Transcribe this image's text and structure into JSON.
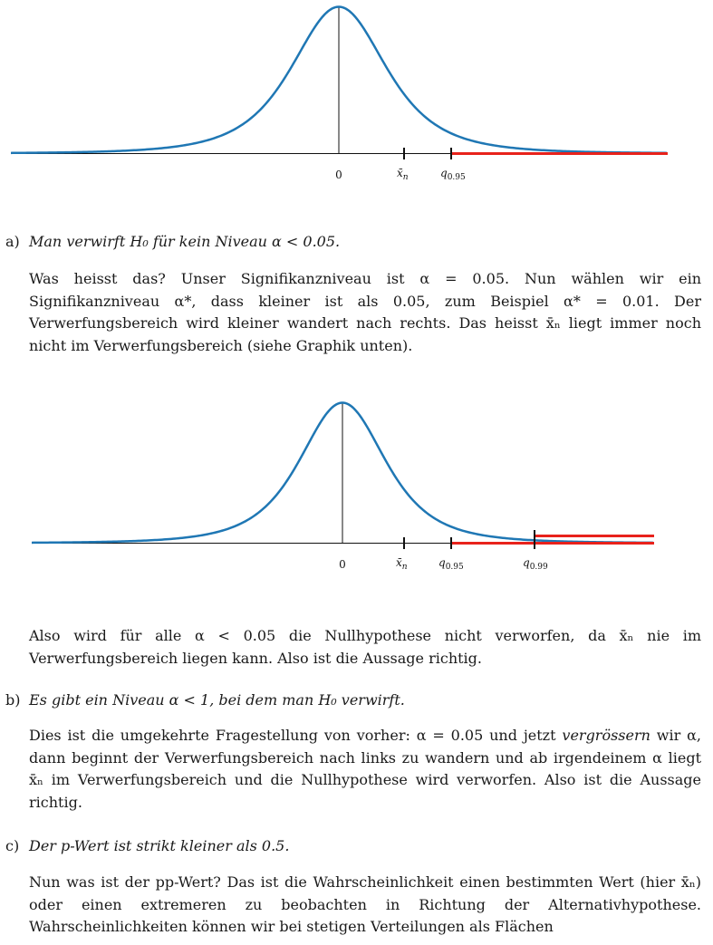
{
  "figures": [
    {
      "labels": {
        "zero": "0",
        "xbar": "x̄",
        "xbar_sub": "n",
        "q95": "q",
        "q95_sub": "0.95"
      }
    },
    {
      "labels": {
        "zero": "0",
        "xbar": "x̄",
        "xbar_sub": "n",
        "q95": "q",
        "q95_sub": "0.95",
        "q99": "q",
        "q99_sub": "0.99"
      }
    }
  ],
  "items": [
    {
      "label": "a)",
      "statement": "Man verwirft H₀ für kein Niveau α < 0.05.",
      "paragraph1": "Was heisst das? Unser Signifikanzniveau ist α = 0.05. Nun wählen wir ein Signifikanzniveau α*, dass kleiner ist als 0.05, zum Beispiel α* = 0.01. Der Verwerfungsbereich wird kleiner wandert nach rechts. Das heisst x̄ₙ liegt immer noch nicht im Verwerfungsbereich (siehe Graphik unten).",
      "paragraph2": "Also wird für alle α < 0.05 die Nullhypothese nicht verworfen, da x̄ₙ nie im Verwerfungsbereich liegen kann. Also ist die Aussage richtig."
    },
    {
      "label": "b)",
      "statement": "Es gibt ein Niveau α < 1, bei dem man H₀ verwirft.",
      "para_part1": "Dies ist die umgekehrte Fragestellung von vorher: α = 0.05 und jetzt ",
      "para_italic": "vergrössern",
      "para_part2": " wir α, dann beginnt der Verwerfungsbereich nach links zu wandern und ab irgendeinem α liegt x̄ₙ im Verwerfungsbereich und die Nullhypothese wird verworfen. Also ist die Aussage richtig."
    },
    {
      "label": "c)",
      "statement": "Der p-Wert ist strikt kleiner als 0.5.",
      "paragraph": "Nun was ist der pp-Wert? Das ist die Wahrscheinlichkeit einen bestimmten Wert (hier x̄ₙ) oder einen extremeren zu beobachten in Richtung der Alternativhypothese. Wahrscheinlichkeiten können wir bei stetigen Verteilungen als Flächen"
    }
  ],
  "colors": {
    "curve": "#1f77b4",
    "rejection": "#e8221b",
    "axis": "#111111"
  }
}
